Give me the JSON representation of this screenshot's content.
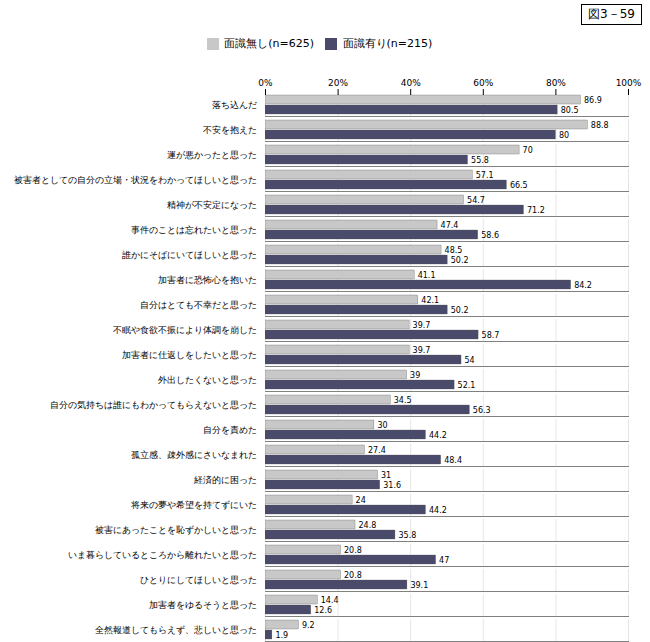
{
  "chart_data": {
    "type": "bar",
    "orientation": "horizontal",
    "title": "図3－59",
    "categories": [
      "落ち込んだ",
      "不安を抱えた",
      "運が悪かったと思った",
      "被害者としての自分の立場・状況をわかってほしいと思った",
      "精神が不安定になった",
      "事件のことは忘れたいと思った",
      "誰かにそばにいてほしいと思った",
      "加害者に恐怖心を抱いた",
      "自分はとても不幸だと思った",
      "不眠や食欲不振により体調を崩した",
      "加害者に仕返しをしたいと思った",
      "外出したくないと思った",
      "自分の気持ちは誰にもわかってもらえないと思った",
      "自分を責めた",
      "孤立感、疎外感にさいなまれた",
      "経済的に困った",
      "将来の夢や希望を持てずにいた",
      "被害にあったことを恥ずかしいと思った",
      "いま暮らしているところから離れたいと思った",
      "ひとりにしてほしいと思った",
      "加害者をゆるそうと思った",
      "全然報道してもらえず、悲しいと思った"
    ],
    "series": [
      {
        "name": "面識無し(n=625)",
        "color": "#c8c8c8",
        "values": [
          86.9,
          88.8,
          70.0,
          57.1,
          54.7,
          47.4,
          48.5,
          41.1,
          42.1,
          39.7,
          39.7,
          39.0,
          34.5,
          30.0,
          27.4,
          31.0,
          24.0,
          24.8,
          20.8,
          20.8,
          14.4,
          9.2
        ]
      },
      {
        "name": "面識有り(n=215)",
        "color": "#4a4a6a",
        "values": [
          80.5,
          80.0,
          55.8,
          66.5,
          71.2,
          58.6,
          50.2,
          84.2,
          50.2,
          58.7,
          54.0,
          52.1,
          56.3,
          44.2,
          48.4,
          31.6,
          44.2,
          35.8,
          47.0,
          39.1,
          12.6,
          1.9
        ]
      }
    ],
    "xlim": [
      0,
      100
    ],
    "xticks": [
      {
        "value": 0,
        "label": "0%"
      },
      {
        "value": 20,
        "label": "20%"
      },
      {
        "value": 40,
        "label": "40%"
      },
      {
        "value": 60,
        "label": "60%"
      },
      {
        "value": 80,
        "label": "80%"
      },
      {
        "value": 100,
        "label": "100%"
      }
    ],
    "grid": true,
    "legend": "top",
    "data_labels": true
  }
}
